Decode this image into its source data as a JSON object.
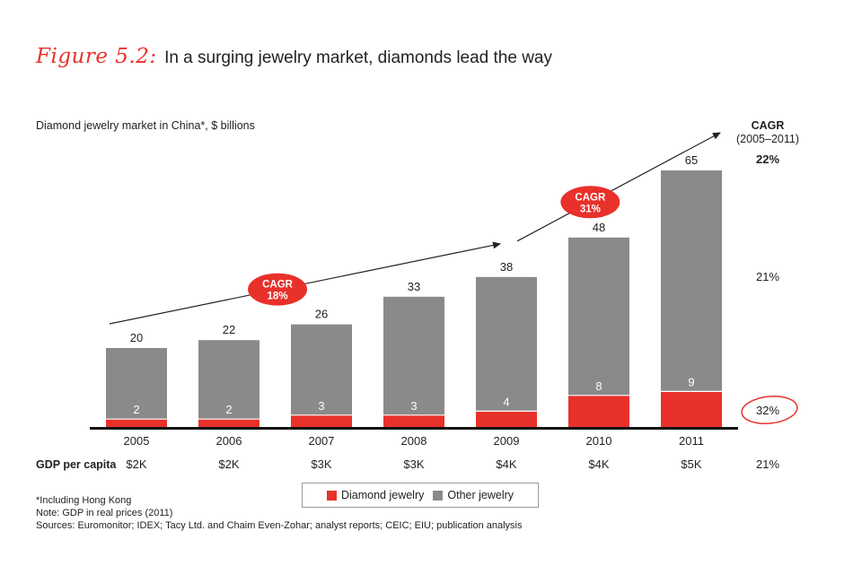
{
  "figure": {
    "prefix": "Figure 5.2:",
    "title": "In a surging jewelry market, diamonds lead the way"
  },
  "colors": {
    "diamond": "#e8312a",
    "other": "#8a8a8a",
    "text": "#222222"
  },
  "chart_data": {
    "type": "bar",
    "stacked": true,
    "title": "Diamond jewelry market in China*, $ billions",
    "categories": [
      "2005",
      "2006",
      "2007",
      "2008",
      "2009",
      "2010",
      "2011"
    ],
    "series": [
      {
        "name": "Diamond jewelry",
        "values": [
          2,
          2,
          3,
          3,
          4,
          8,
          9
        ]
      },
      {
        "name": "Other jewelry",
        "values": [
          18,
          20,
          23,
          30,
          34,
          40,
          56
        ]
      }
    ],
    "totals": [
      20,
      22,
      26,
      33,
      38,
      48,
      65
    ],
    "totals_labels": [
      "20",
      "22",
      "26",
      "33",
      "38",
      "48",
      "65"
    ],
    "diamond_labels": [
      "2",
      "2",
      "3",
      "3",
      "4",
      "8",
      "9"
    ],
    "gdp_label": "GDP per capita",
    "gdp_per_capita": [
      "$2K",
      "$2K",
      "$3K",
      "$3K",
      "$4K",
      "$4K",
      "$5K"
    ],
    "cagr_header": {
      "title": "CAGR",
      "period": "(2005–2011)"
    },
    "cagr_total": "22%",
    "cagr_other": "21%",
    "cagr_diamond": "32%",
    "cagr_gdp": "21%",
    "trend_annotations": [
      {
        "text1": "CAGR",
        "text2": "18%",
        "from": "2005",
        "to": "2009"
      },
      {
        "text1": "CAGR",
        "text2": "31%",
        "from": "2009",
        "to": "2011"
      }
    ],
    "legend": [
      "Diamond jewelry",
      "Other jewelry"
    ]
  },
  "notes": {
    "line1": "*Including Hong Kong",
    "line2": "Note: GDP in real prices (2011)",
    "line3": "Sources: Euromonitor; IDEX; Tacy Ltd. and Chaim Even-Zohar; analyst reports; CEIC; EIU; publication analysis"
  }
}
